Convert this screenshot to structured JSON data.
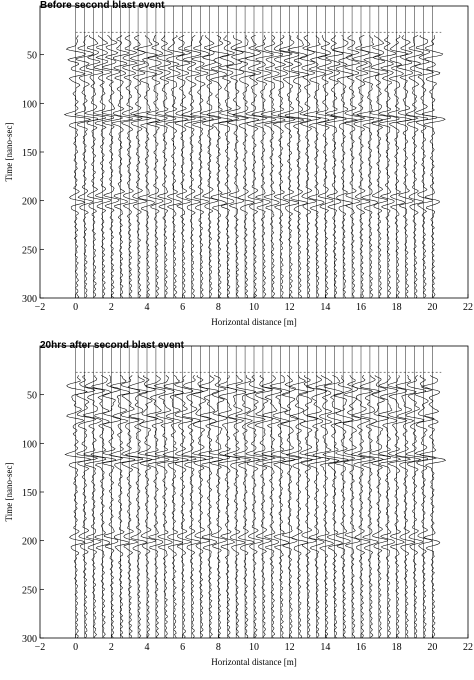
{
  "figures": [
    {
      "title": "Before second blast event"
    },
    {
      "title": "20hrs after second blast event"
    }
  ],
  "chart_data": [
    {
      "type": "line",
      "subtype": "radar-wiggle-traces",
      "title": "Before second blast event",
      "xlabel": "Horizontal distance [m]",
      "ylabel": "Time [nano-sec]",
      "xlim": [
        -2,
        22
      ],
      "ylim": [
        300,
        0
      ],
      "y_inverted": true,
      "x_ticks": [
        -2,
        0,
        2,
        4,
        6,
        8,
        10,
        12,
        14,
        16,
        18,
        20,
        22
      ],
      "y_ticks": [
        50,
        100,
        150,
        200,
        250,
        300
      ],
      "grid": false,
      "trace_positions": [
        0,
        0.5,
        1,
        1.5,
        2,
        2.5,
        3,
        3.5,
        4,
        4.5,
        5,
        5.5,
        6,
        6.5,
        7,
        7.5,
        8,
        8.5,
        9,
        9.5,
        10,
        10.5,
        11,
        11.5,
        12,
        12.5,
        13,
        13.5,
        14,
        14.5,
        15,
        15.5,
        16,
        16.5,
        17,
        17.5,
        18,
        18.5,
        19,
        19.5,
        20
      ],
      "time_window": [
        30,
        300
      ],
      "strong_reflection_times": [
        48,
        68,
        115,
        200
      ]
    },
    {
      "type": "line",
      "subtype": "radar-wiggle-traces",
      "title": "20hrs after second blast event",
      "xlabel": "Horizontal distance [m]",
      "ylabel": "Time [nano-sec]",
      "xlim": [
        -2,
        22
      ],
      "ylim": [
        300,
        0
      ],
      "y_inverted": true,
      "x_ticks": [
        -2,
        0,
        2,
        4,
        6,
        8,
        10,
        12,
        14,
        16,
        18,
        20,
        22
      ],
      "y_ticks": [
        50,
        100,
        150,
        200,
        250,
        300
      ],
      "grid": false,
      "trace_positions": [
        0,
        0.5,
        1,
        1.5,
        2,
        2.5,
        3,
        3.5,
        4,
        4.5,
        5,
        5.5,
        6,
        6.5,
        7,
        7.5,
        8,
        8.5,
        9,
        9.5,
        10,
        10.5,
        11,
        11.5,
        12,
        12.5,
        13,
        13.5,
        14,
        14.5,
        15,
        15.5,
        16,
        16.5,
        17,
        17.5,
        18,
        18.5,
        19,
        19.5,
        20
      ],
      "time_window": [
        30,
        300
      ],
      "strong_reflection_times": [
        45,
        75,
        115,
        200
      ]
    }
  ]
}
